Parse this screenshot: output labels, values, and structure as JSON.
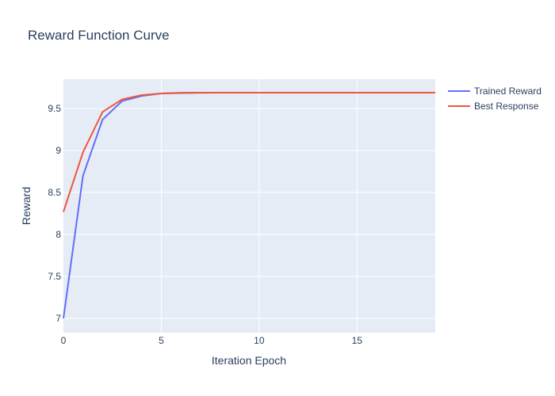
{
  "chart_data": {
    "type": "line",
    "title": "Reward Function Curve",
    "xlabel": "Iteration Epoch",
    "ylabel": "Reward",
    "xlim": [
      0,
      19
    ],
    "ylim": [
      6.83,
      9.85
    ],
    "x_ticks": [
      0,
      5,
      10,
      15
    ],
    "y_ticks": [
      7,
      7.5,
      8,
      8.5,
      9,
      9.5
    ],
    "grid": true,
    "legend_position": "top-right",
    "plot_background": "#e5ecf6",
    "x": [
      0,
      1,
      2,
      3,
      4,
      5,
      6,
      7,
      8,
      9,
      10,
      11,
      12,
      13,
      14,
      15,
      16,
      17,
      18,
      19
    ],
    "series": [
      {
        "name": "Trained Reward",
        "color": "#636efa",
        "values": [
          7.0,
          8.7,
          9.37,
          9.59,
          9.65,
          9.68,
          9.685,
          9.688,
          9.69,
          9.69,
          9.69,
          9.69,
          9.69,
          9.69,
          9.69,
          9.69,
          9.69,
          9.69,
          9.69,
          9.69
        ]
      },
      {
        "name": "Best Response",
        "color": "#ef553b",
        "values": [
          8.27,
          8.98,
          9.46,
          9.61,
          9.66,
          9.68,
          9.688,
          9.69,
          9.69,
          9.69,
          9.69,
          9.69,
          9.69,
          9.69,
          9.69,
          9.69,
          9.69,
          9.69,
          9.69,
          9.69
        ]
      }
    ]
  }
}
